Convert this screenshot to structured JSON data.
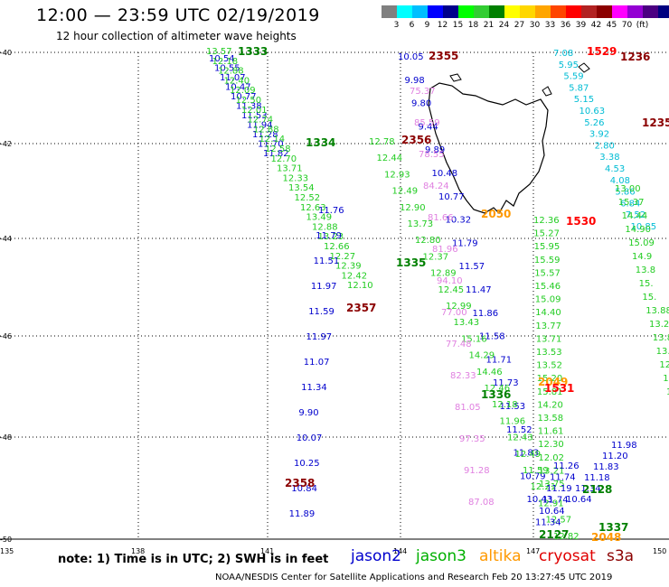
{
  "title": "12:00 — 23:59 UTC 02/19/2019",
  "subtitle": "12 hour collection of altimeter wave heights",
  "colorbar": {
    "colors": [
      "#808080",
      "#00ffff",
      "#00bfff",
      "#0000ff",
      "#00008b",
      "#00ff00",
      "#32cd32",
      "#008000",
      "#ffff00",
      "#ffd700",
      "#ffa500",
      "#ff4500",
      "#ff0000",
      "#b22222",
      "#8b0000",
      "#ff00ff",
      "#9400d3",
      "#4b0082",
      "#000080"
    ],
    "labels": [
      "3",
      "6",
      "9",
      "12",
      "15",
      "18",
      "21",
      "24",
      "27",
      "30",
      "33",
      "36",
      "39",
      "42",
      "45",
      "70",
      "(ft)"
    ]
  },
  "lat_labels": [
    "-40",
    "-42",
    "-44",
    "-46",
    "-48",
    "-50"
  ],
  "lon_labels": [
    "135",
    "138",
    "141",
    "144",
    "147",
    "150"
  ],
  "note": "note: 1) Time is in UTC; 2) SWH is in feet",
  "legend": [
    {
      "name": "jason2",
      "color": "#0000cd"
    },
    {
      "name": "jason3",
      "color": "#00b000"
    },
    {
      "name": "altika",
      "color": "#ff9900"
    },
    {
      "name": "cryosat",
      "color": "#e00000"
    },
    {
      "name": "s3a",
      "color": "#8b0000"
    }
  ],
  "credit": "NOAA/NESDIS Center for Satellite Applications and Research    Feb 20 13:27:45 UTC 2019",
  "track_times": [
    {
      "t": "1333",
      "c": "#008000"
    },
    {
      "t": "2355",
      "c": "#8b0000"
    },
    {
      "t": "1529",
      "c": "#ff0000"
    },
    {
      "t": "1236",
      "c": "#8b0000"
    },
    {
      "t": "1235",
      "c": "#8b0000"
    },
    {
      "t": "1334",
      "c": "#008000"
    },
    {
      "t": "2356",
      "c": "#8b0000"
    },
    {
      "t": "2050",
      "c": "#ff9900"
    },
    {
      "t": "1530",
      "c": "#ff0000"
    },
    {
      "t": "1335",
      "c": "#008000"
    },
    {
      "t": "2357",
      "c": "#8b0000"
    },
    {
      "t": "2049",
      "c": "#ff9900"
    },
    {
      "t": "1531",
      "c": "#ff0000"
    },
    {
      "t": "1336",
      "c": "#008000"
    },
    {
      "t": "2358",
      "c": "#8b0000"
    },
    {
      "t": "2128",
      "c": "#008000"
    },
    {
      "t": "2127",
      "c": "#008000"
    },
    {
      "t": "2048",
      "c": "#ff9900"
    },
    {
      "t": "1337",
      "c": "#008000"
    }
  ],
  "tracks": {
    "jason2_west": [
      "10.54",
      "10.55",
      "11.07",
      "10.47",
      "10.77",
      "11.38",
      "11.53",
      "11.94",
      "11.28",
      "11.70",
      "11.82"
    ],
    "jason3_west": [
      "13.57",
      "12.18",
      "12.88",
      "12.40",
      "12.09",
      "12.50",
      "12.01",
      "12.74",
      "12.88",
      "12.14",
      "12.58",
      "12.70",
      "13.71",
      "12.33",
      "13.54",
      "12.52",
      "12.63",
      "13.49",
      "12.88",
      "13.23",
      "12.66",
      "12.27",
      "12.39",
      "12.42",
      "12.10"
    ],
    "jason2_west2": [
      "11.76",
      "11.79",
      "11.51",
      "11.97",
      "11.59",
      "11.97",
      "11.07",
      "11.34",
      "9.90",
      "10.07",
      "10.25",
      "10.84",
      "11.89"
    ],
    "jason2_mid": [
      "10.05",
      "9.98",
      "9.80",
      "9.44",
      "9.89",
      "10.48",
      "10.77",
      "10.32",
      "11.79",
      "11.57",
      "11.47",
      "11.86",
      "11.58",
      "11.71",
      "11.73",
      "11.53",
      "11.52",
      "11.83",
      "10.79",
      "10.43"
    ],
    "jason3_mid": [
      "12.78",
      "12.44",
      "12.93",
      "12.49",
      "12.90",
      "13.73",
      "12.80",
      "12.37",
      "12.89",
      "12.45",
      "12.99",
      "13.43",
      "15.16",
      "14.29",
      "14.46",
      "12.46",
      "12.18",
      "11.96",
      "12.43",
      "12.49",
      "11.59",
      "12.21",
      "12.91",
      "12.57",
      "12.82"
    ],
    "s3a_mid": [
      "75.37",
      "85.59",
      "78.55",
      "84.24",
      "81.66",
      "81.96",
      "94.10",
      "77.00",
      "77.48",
      "82.33",
      "81.05",
      "97.35",
      "91.28",
      "87.08"
    ],
    "jason3_east": [
      "12.36",
      "15.27",
      "15.95",
      "15.59",
      "15.57",
      "15.46",
      "15.09",
      "14.40",
      "13.77",
      "13.71",
      "13.53",
      "13.52",
      "15.20",
      "15.81",
      "14.20",
      "13.58",
      "11.61",
      "12.30",
      "12.02",
      "13.21",
      "13.75"
    ],
    "cryosat_east": [
      "7.08",
      "5.95",
      "5.59",
      "5.87",
      "5.15",
      "10.63",
      "5.26",
      "3.92",
      "2.80",
      "3.38",
      "4.53",
      "4.08",
      "5.86",
      "6.84",
      "7.52",
      "10.85"
    ],
    "jason3_far_east": [
      "13.00",
      "15.37",
      "14.44",
      "14.90",
      "15.09",
      "14.9",
      "13.8",
      "15.",
      "15.",
      "13.88",
      "13.2",
      "13.85",
      "13.02",
      "12.95",
      "12.91",
      "12.71"
    ],
    "jason2_se": [
      "11.98",
      "11.20",
      "11.83",
      "11.18",
      "11.34",
      "10.64"
    ],
    "jason2_se_extra": [
      "11.26",
      "11.74",
      "11.19",
      "11.74",
      "10.64",
      "11.34"
    ]
  }
}
